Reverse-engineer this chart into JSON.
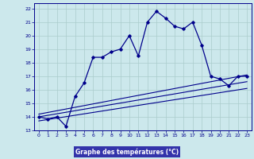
{
  "xlabel": "Graphe des températures (°C)",
  "background_color": "#cce8ec",
  "grid_color": "#aacccc",
  "line_color": "#00008b",
  "xlabel_bg": "#3333aa",
  "xlabel_fg": "#ffffff",
  "xlim": [
    -0.5,
    23.5
  ],
  "ylim": [
    13,
    22.4
  ],
  "xticks": [
    0,
    1,
    2,
    3,
    4,
    5,
    6,
    7,
    8,
    9,
    10,
    11,
    12,
    13,
    14,
    15,
    16,
    17,
    18,
    19,
    20,
    21,
    22,
    23
  ],
  "yticks": [
    13,
    14,
    15,
    16,
    17,
    18,
    19,
    20,
    21,
    22
  ],
  "main_x": [
    0,
    1,
    2,
    3,
    4,
    5,
    6,
    7,
    8,
    9,
    10,
    11,
    12,
    13,
    14,
    15,
    16,
    17,
    18,
    19,
    20,
    21,
    22,
    23
  ],
  "main_y": [
    14.0,
    13.85,
    14.0,
    13.3,
    15.5,
    16.5,
    18.4,
    18.4,
    18.8,
    19.0,
    20.0,
    18.5,
    21.0,
    21.8,
    21.3,
    20.7,
    20.5,
    21.0,
    19.3,
    17.0,
    16.8,
    16.3,
    17.0,
    17.0
  ],
  "line1_x": [
    0,
    23
  ],
  "line1_y": [
    14.2,
    17.1
  ],
  "line2_x": [
    0,
    23
  ],
  "line2_y": [
    14.0,
    16.6
  ],
  "line3_x": [
    0,
    23
  ],
  "line3_y": [
    13.7,
    16.1
  ]
}
